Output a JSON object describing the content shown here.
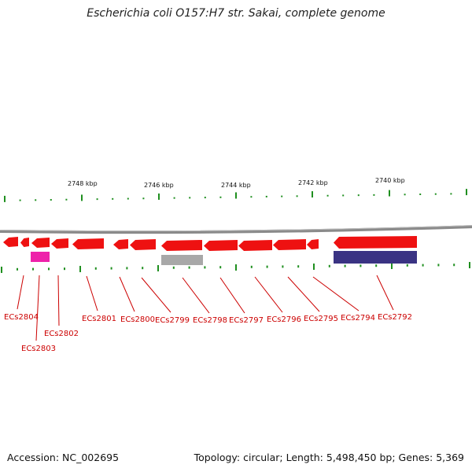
{
  "title": "Escherichia coli O157:H7 str. Sakai, complete genome",
  "footer": {
    "accession": "Accession: NC_002695",
    "topology": "Topology: circular; Length: 5,498,450 bp; Genes: 5,369"
  },
  "colors": {
    "backbone": "#8a8a8a",
    "tick": "#1f8f1f",
    "gene_red": "#ee1111",
    "gene_pink": "#ee22aa",
    "gene_gray": "#a8a8a8",
    "gene_navy": "#3a3383",
    "label": "#cc0000"
  },
  "scale_labels": [
    "2748 kbp",
    "2746 kbp",
    "2744 kbp",
    "2742 kbp",
    "2740 kbp"
  ],
  "genes": [
    {
      "name": "ECs2804"
    },
    {
      "name": "ECs2803"
    },
    {
      "name": "ECs2802"
    },
    {
      "name": "ECs2801"
    },
    {
      "name": "ECs2800"
    },
    {
      "name": "ECs2799"
    },
    {
      "name": "ECs2798"
    },
    {
      "name": "ECs2797"
    },
    {
      "name": "ECs2796"
    },
    {
      "name": "ECs2795"
    },
    {
      "name": "ECs2794"
    },
    {
      "name": "ECs2792"
    }
  ],
  "features": [
    {
      "color": "gene_red"
    },
    {
      "color": "gene_red"
    },
    {
      "color": "gene_red"
    },
    {
      "color": "gene_red"
    },
    {
      "color": "gene_red"
    },
    {
      "color": "gene_red"
    },
    {
      "color": "gene_red"
    },
    {
      "color": "gene_red"
    },
    {
      "color": "gene_red"
    },
    {
      "color": "gene_red"
    },
    {
      "color": "gene_red"
    },
    {
      "color": "gene_red"
    },
    {
      "color": "gene_red"
    },
    {
      "color": "gene_pink"
    },
    {
      "color": "gene_gray"
    },
    {
      "color": "gene_navy"
    }
  ]
}
